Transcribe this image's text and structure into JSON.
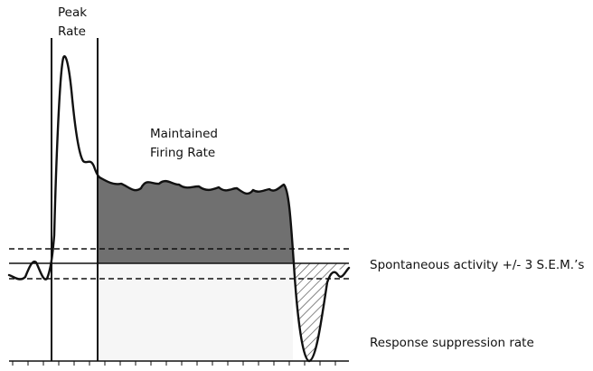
{
  "labels": {
    "peak_line1": "Peak",
    "peak_line2": "Rate",
    "maintained_line1": "Maintained",
    "maintained_line2": "Firing Rate",
    "spontaneous": "Spontaneous activity +/- 3 S.E.M.’s",
    "suppression": "Response suppression rate"
  },
  "colors": {
    "trace": "#111111",
    "maintained_fill": "#6f6f6f",
    "suppression_fill": "#f3f3f3",
    "hatch": "#555555",
    "background": "#ffffff"
  }
}
